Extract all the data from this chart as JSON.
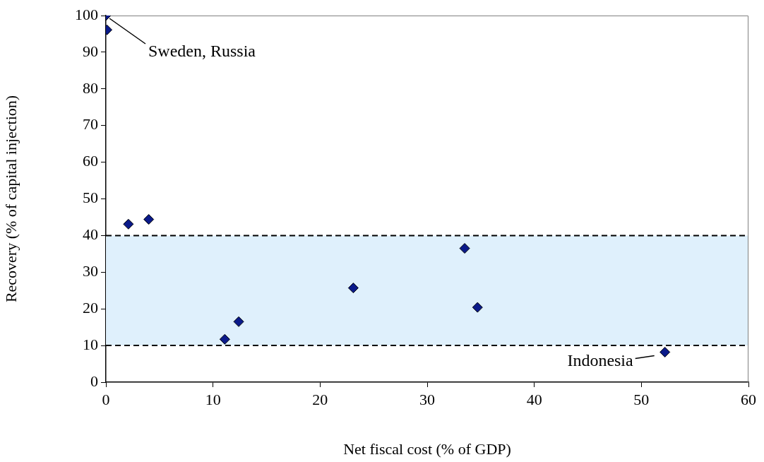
{
  "chart_data": {
    "type": "scatter",
    "xlabel": "Net fiscal cost (% of GDP)",
    "ylabel": "Recovery (% of capital injection)",
    "x": [
      0,
      0.1,
      2.1,
      4.0,
      11.1,
      12.4,
      23.1,
      33.5,
      34.7,
      52.2
    ],
    "values": [
      100,
      96.1,
      43.1,
      44.4,
      11.7,
      16.5,
      25.7,
      36.5,
      20.4,
      8.2
    ],
    "color": "#0a1a8a",
    "marker": "diamond",
    "xlim": [
      0,
      60
    ],
    "xticks": [
      0,
      10,
      20,
      30,
      40,
      50,
      60
    ],
    "ylim": [
      0,
      100
    ],
    "yticks": [
      0,
      10,
      20,
      30,
      40,
      50,
      60,
      70,
      80,
      90,
      100
    ],
    "grid": false,
    "legend": false,
    "bands": [
      {
        "axis": "y",
        "from": 10,
        "to": 40,
        "color": "#dff0fc"
      }
    ],
    "ref_lines": [
      {
        "axis": "y",
        "value": 40,
        "color": "#000000",
        "line_style": "dashed"
      },
      {
        "axis": "y",
        "value": 10,
        "color": "#000000",
        "line_style": "dashed"
      }
    ],
    "annotations": [
      {
        "text": "Sweden, Russia",
        "x": 0,
        "y": 100
      },
      {
        "text": "Indonesia",
        "x": 52.2,
        "y": 8.2
      }
    ]
  }
}
